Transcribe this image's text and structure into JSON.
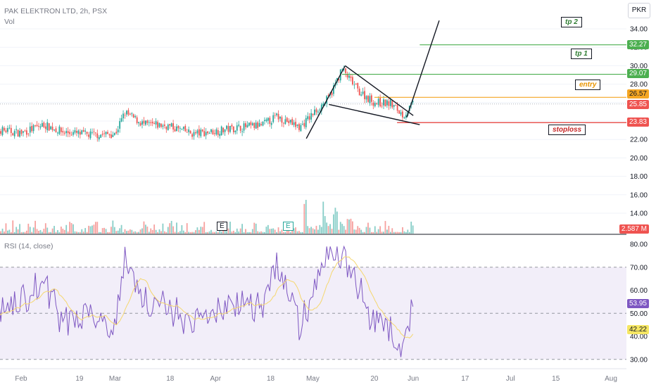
{
  "header": {
    "title": "PAK ELEKTRON LTD, 2h, PSX",
    "vol_label": "Vol",
    "rsi_label": "RSI (14, close)",
    "currency": "PKR"
  },
  "price_axis": {
    "ticks": [
      "34.00",
      "32.00",
      "30.00",
      "28.00",
      "26.00",
      "24.00",
      "22.00",
      "20.00",
      "18.00",
      "16.00",
      "14.00"
    ]
  },
  "rsi_axis": {
    "ticks": [
      "80.00",
      "70.00",
      "60.00",
      "50.00",
      "40.00",
      "30.00"
    ]
  },
  "x_axis": {
    "ticks": [
      "Feb",
      "19",
      "Mar",
      "18",
      "Apr",
      "18",
      "May",
      "20",
      "Jun",
      "17",
      "Jul",
      "15",
      "Aug"
    ]
  },
  "levels": {
    "tp2": "32.27",
    "tp1": "29.07",
    "entry": "26.57",
    "last": "25.85",
    "stoploss": "23.83",
    "volume": "2.587 M",
    "rsi": "53.95",
    "rsi_ma": "42.22"
  },
  "annotations": {
    "tp2": "tp 2",
    "tp1": "tp 1",
    "entry": "entry",
    "stoploss": "stoploss"
  },
  "markers": {
    "earnings_1": "E",
    "earnings_2": "E"
  },
  "colors": {
    "up": "#26a69a",
    "down": "#ef5350",
    "green_line": "#4caf50",
    "orange_line": "#f5a623",
    "red_line": "#e53935",
    "rsi_line": "#7e57c2",
    "rsi_ma": "#f5d76e",
    "rsi_band": "#ede7f6"
  },
  "chart_data": {
    "type": "candlestick",
    "symbol": "PAK ELEKTRON LTD",
    "interval": "2h",
    "price_range": [
      12.5,
      35.5
    ],
    "rsi_range": [
      28,
      82
    ],
    "rsi_bands": [
      70,
      30
    ],
    "anchors": [
      {
        "x": "Jan 22",
        "price": 23.2,
        "rsi": 48
      },
      {
        "x": "Feb 1",
        "price": 22.7,
        "rsi": 55
      },
      {
        "x": "Feb 8",
        "price": 23.6,
        "rsi": 64
      },
      {
        "x": "Feb 14",
        "price": 22.8,
        "rsi": 45
      },
      {
        "x": "Feb 22",
        "price": 22.5,
        "rsi": 52
      },
      {
        "x": "Mar 1",
        "price": 22.6,
        "rsi": 44
      },
      {
        "x": "Mar 4",
        "price": 24.9,
        "rsi": 74
      },
      {
        "x": "Mar 10",
        "price": 23.6,
        "rsi": 56
      },
      {
        "x": "Mar 17",
        "price": 23.5,
        "rsi": 53
      },
      {
        "x": "Mar 25",
        "price": 22.6,
        "rsi": 45
      },
      {
        "x": "Apr 1",
        "price": 22.9,
        "rsi": 50
      },
      {
        "x": "Apr 8",
        "price": 23.3,
        "rsi": 56
      },
      {
        "x": "Apr 15",
        "price": 23.5,
        "rsi": 52
      },
      {
        "x": "Apr 20",
        "price": 24.5,
        "rsi": 72
      },
      {
        "x": "Apr 27",
        "price": 23.3,
        "rsi": 44
      },
      {
        "x": "May 3",
        "price": 25.5,
        "rsi": 66
      },
      {
        "x": "May 6",
        "price": 26.5,
        "rsi": 78
      },
      {
        "x": "May 10",
        "price": 29.6,
        "rsi": 76
      },
      {
        "x": "May 15",
        "price": 27.3,
        "rsi": 62
      },
      {
        "x": "May 20",
        "price": 26.0,
        "rsi": 45
      },
      {
        "x": "May 25",
        "price": 25.9,
        "rsi": 42
      },
      {
        "x": "May 29",
        "price": 24.6,
        "rsi": 33
      },
      {
        "x": "Jun 1",
        "price": 25.9,
        "rsi": 54
      }
    ],
    "pattern_lines": [
      {
        "from": {
          "x": "Apr 29",
          "price": 22.1
        },
        "to": {
          "x": "May 11",
          "price": 30.0
        }
      },
      {
        "from": {
          "x": "May 11",
          "price": 30.0
        },
        "to": {
          "x": "Jun 1",
          "price": 24.6
        }
      },
      {
        "from": {
          "x": "May 6",
          "price": 25.8
        },
        "to": {
          "x": "Jun 3",
          "price": 23.6
        }
      },
      {
        "from": {
          "x": "May 30",
          "price": 24.4
        },
        "to": {
          "x": "Jun 9",
          "price": 34.9
        }
      }
    ],
    "horizontal_levels": [
      {
        "name": "tp 2",
        "price": 32.27
      },
      {
        "name": "tp 1",
        "price": 29.07
      },
      {
        "name": "entry",
        "price": 26.57
      },
      {
        "name": "stoploss",
        "price": 23.83
      }
    ]
  }
}
